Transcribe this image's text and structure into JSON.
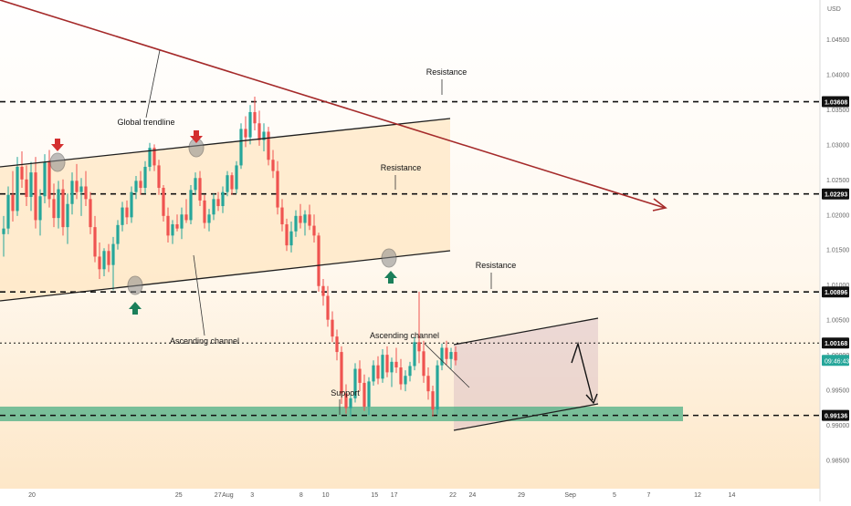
{
  "colors": {
    "up": "#26a69a",
    "down": "#ef5350",
    "trendline": "#a52a2a",
    "channel": "#1e1e1e",
    "zone_fill": "#ffe0b2",
    "support_zone": "#4caf84",
    "box_fill": "#d7b7c0",
    "up_arrow": "#1b7f5a",
    "down_arrow": "#d32f2f"
  },
  "icons": {
    "touch_marker": "gray-circle-icon",
    "bull_marker": "green-up-arrow-icon",
    "bear_marker": "red-down-arrow-icon"
  },
  "chart_data": {
    "type": "candlestick",
    "currency_label": "USD",
    "ylim": [
      0.9815,
      1.0512
    ],
    "y_ticks": [
      "1.04500",
      "1.04000",
      "1.03500",
      "1.03000",
      "1.02500",
      "1.02000",
      "1.01500",
      "1.01000",
      "1.00500",
      "1.00000",
      "0.99500",
      "0.99000",
      "0.98500"
    ],
    "y_tick_values": [
      1.045,
      1.04,
      1.035,
      1.03,
      1.025,
      1.02,
      1.015,
      1.01,
      1.005,
      1.0,
      0.995,
      0.99,
      0.985
    ],
    "x_ticks": [
      "20",
      "25",
      "27",
      "Aug",
      "3",
      "8",
      "10",
      "15",
      "17",
      "22",
      "24",
      "29",
      "Sep",
      "5",
      "7",
      "12",
      "14"
    ],
    "x_tick_positions": [
      0,
      30,
      38,
      40,
      45,
      55,
      60,
      70,
      74,
      86,
      90,
      100,
      110,
      119,
      126,
      136,
      143
    ],
    "candle_range": [
      0,
      105
    ],
    "levels": [
      {
        "label": "1.03608",
        "value": 1.03608
      },
      {
        "label": "1.02293",
        "value": 1.02293
      },
      {
        "label": "1.00896",
        "value": 1.00896
      },
      {
        "label": "1.00168",
        "value": 1.00168
      },
      {
        "label": "0.99136",
        "value": 0.99136
      }
    ],
    "current_price": {
      "label": "09:46:43",
      "value": 0.9992
    },
    "candles": [
      [
        1.0172,
        1.0198,
        1.014,
        1.018
      ],
      [
        1.018,
        1.024,
        1.0172,
        1.0228
      ],
      [
        1.0228,
        1.0262,
        1.019,
        1.0205
      ],
      [
        1.0205,
        1.0282,
        1.0198,
        1.0268
      ],
      [
        1.0268,
        1.029,
        1.0238,
        1.025
      ],
      [
        1.025,
        1.027,
        1.0212,
        1.0225
      ],
      [
        1.0225,
        1.0275,
        1.0205,
        1.026
      ],
      [
        1.026,
        1.0282,
        1.018,
        1.0192
      ],
      [
        1.0192,
        1.0236,
        1.017,
        1.0226
      ],
      [
        1.0226,
        1.0286,
        1.0216,
        1.0275
      ],
      [
        1.0275,
        1.0292,
        1.021,
        1.0222
      ],
      [
        1.0222,
        1.0244,
        1.0182,
        1.0195
      ],
      [
        1.0195,
        1.0248,
        1.018,
        1.0236
      ],
      [
        1.0236,
        1.025,
        1.017,
        1.0182
      ],
      [
        1.0182,
        1.023,
        1.0158,
        1.0215
      ],
      [
        1.0215,
        1.026,
        1.02,
        1.0248
      ],
      [
        1.0248,
        1.0272,
        1.0222,
        1.0232
      ],
      [
        1.0232,
        1.0252,
        1.0198,
        1.024
      ],
      [
        1.024,
        1.0262,
        1.0212,
        1.0222
      ],
      [
        1.0222,
        1.0232,
        1.0172,
        1.0182
      ],
      [
        1.0182,
        1.0198,
        1.0132,
        1.014
      ],
      [
        1.014,
        1.016,
        1.0108,
        1.0122
      ],
      [
        1.0122,
        1.0152,
        1.0112,
        1.0148
      ],
      [
        1.0148,
        1.0158,
        1.0118,
        1.0128
      ],
      [
        1.0128,
        1.0168,
        1.0092,
        1.0158
      ],
      [
        1.0158,
        1.0192,
        1.015,
        1.0185
      ],
      [
        1.0185,
        1.0218,
        1.0176,
        1.021
      ],
      [
        1.021,
        1.022,
        1.0186,
        1.0196
      ],
      [
        1.0196,
        1.024,
        1.0188,
        1.0232
      ],
      [
        1.0232,
        1.0255,
        1.0222,
        1.0248
      ],
      [
        1.0248,
        1.0262,
        1.0228,
        1.0238
      ],
      [
        1.0238,
        1.0276,
        1.023,
        1.0268
      ],
      [
        1.0268,
        1.0302,
        1.0262,
        1.0295
      ],
      [
        1.0295,
        1.03,
        1.0262,
        1.027
      ],
      [
        1.027,
        1.0278,
        1.0228,
        1.0238
      ],
      [
        1.0238,
        1.0242,
        1.019,
        1.0198
      ],
      [
        1.0198,
        1.021,
        1.016,
        1.017
      ],
      [
        1.017,
        1.0192,
        1.0158,
        1.0186
      ],
      [
        1.0186,
        1.02,
        1.0176,
        1.018
      ],
      [
        1.018,
        1.021,
        1.0165,
        1.02
      ],
      [
        1.02,
        1.0222,
        1.0188,
        1.0192
      ],
      [
        1.0192,
        1.0242,
        1.0186,
        1.0235
      ],
      [
        1.0235,
        1.026,
        1.0228,
        1.0252
      ],
      [
        1.0252,
        1.0262,
        1.0212,
        1.022
      ],
      [
        1.022,
        1.0228,
        1.018,
        1.0188
      ],
      [
        1.0188,
        1.0208,
        1.0176,
        1.02
      ],
      [
        1.02,
        1.023,
        1.0192,
        1.0222
      ],
      [
        1.0222,
        1.0232,
        1.0205,
        1.0212
      ],
      [
        1.0212,
        1.024,
        1.0202,
        1.0232
      ],
      [
        1.0232,
        1.0262,
        1.0226,
        1.0256
      ],
      [
        1.0256,
        1.026,
        1.0228,
        1.0236
      ],
      [
        1.0236,
        1.0276,
        1.023,
        1.027
      ],
      [
        1.027,
        1.033,
        1.0265,
        1.0322
      ],
      [
        1.0322,
        1.034,
        1.0296,
        1.031
      ],
      [
        1.031,
        1.0356,
        1.03,
        1.0346
      ],
      [
        1.0346,
        1.0368,
        1.032,
        1.033
      ],
      [
        1.033,
        1.0348,
        1.0298,
        1.0306
      ],
      [
        1.0306,
        1.033,
        1.029,
        1.0318
      ],
      [
        1.0318,
        1.0325,
        1.027,
        1.0278
      ],
      [
        1.0278,
        1.0292,
        1.0252,
        1.0262
      ],
      [
        1.0262,
        1.0276,
        1.02,
        1.021
      ],
      [
        1.021,
        1.0222,
        1.0176,
        1.0186
      ],
      [
        1.0186,
        1.0194,
        1.0148,
        1.0156
      ],
      [
        1.0156,
        1.019,
        1.0146,
        1.0176
      ],
      [
        1.0176,
        1.0206,
        1.0168,
        1.0198
      ],
      [
        1.0198,
        1.0215,
        1.018,
        1.0188
      ],
      [
        1.0188,
        1.0206,
        1.017,
        1.02
      ],
      [
        1.02,
        1.0214,
        1.0178,
        1.0184
      ],
      [
        1.0184,
        1.02,
        1.016,
        1.017
      ],
      [
        1.017,
        1.0174,
        1.009,
        1.0098
      ],
      [
        1.0098,
        1.0108,
        1.007,
        1.0084
      ],
      [
        1.0084,
        1.0098,
        1.004,
        1.005
      ],
      [
        1.005,
        1.0062,
        1.0018,
        1.0026
      ],
      [
        1.0026,
        1.0036,
        0.9992,
        1.0004
      ],
      [
        1.0004,
        1.0012,
        0.993,
        0.9945
      ],
      [
        0.9945,
        0.9958,
        0.9916,
        0.9924
      ],
      [
        0.9924,
        0.9946,
        0.9912,
        0.9938
      ],
      [
        0.9938,
        0.9988,
        0.9932,
        0.998
      ],
      [
        0.998,
        0.9992,
        0.9948,
        0.996
      ],
      [
        0.996,
        0.9972,
        0.992,
        0.9926
      ],
      [
        0.9926,
        0.9968,
        0.9914,
        0.9962
      ],
      [
        0.9962,
        0.9992,
        0.9956,
        0.9985
      ],
      [
        0.9985,
        0.9998,
        0.9958,
        0.9966
      ],
      [
        0.9966,
        1.0008,
        0.996,
        1.0
      ],
      [
        1.0,
        1.0012,
        0.9968,
        0.9975
      ],
      [
        0.9975,
        0.9996,
        0.9954,
        0.999
      ],
      [
        0.999,
        1.001,
        0.9974,
        0.9982
      ],
      [
        0.9982,
        0.9994,
        0.995,
        0.9958
      ],
      [
        0.9958,
        0.9978,
        0.9948,
        0.997
      ],
      [
        0.997,
        0.999,
        0.9962,
        0.9984
      ],
      [
        0.9984,
        1.0025,
        0.9978,
        1.0018
      ],
      [
        1.0018,
        1.009,
        0.9988,
        1.0005
      ],
      [
        1.0005,
        1.002,
        0.996,
        0.997
      ],
      [
        0.997,
        0.9982,
        0.9936,
        0.9948
      ],
      [
        0.9948,
        0.9956,
        0.9912,
        0.9922
      ],
      [
        0.9922,
        0.9992,
        0.9915,
        0.9985
      ],
      [
        0.9985,
        1.0016,
        0.9978,
        1.001
      ],
      [
        1.001,
        1.002,
        0.9986,
        0.9994
      ],
      [
        0.9994,
        1.001,
        0.998,
        1.0004
      ],
      [
        1.0004,
        1.0012,
        0.9985,
        0.9992
      ]
    ],
    "annotations": [
      {
        "text": "Global trendline"
      },
      {
        "text": "Resistance"
      },
      {
        "text": "Resistance"
      },
      {
        "text": "Resistance"
      },
      {
        "text": "Ascending channel"
      },
      {
        "text": "Ascending channel"
      },
      {
        "text": "Support"
      }
    ]
  }
}
